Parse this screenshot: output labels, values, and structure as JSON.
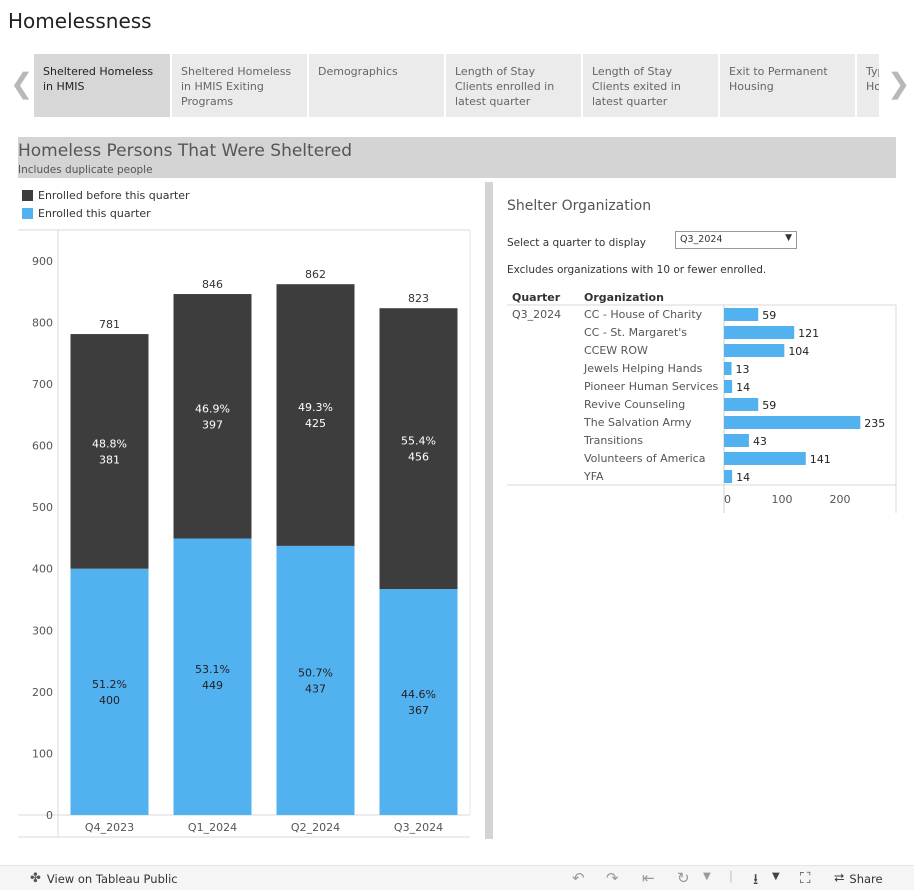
{
  "app": {
    "title": "Homelessness"
  },
  "tabs": [
    {
      "label": "Sheltered Homeless in HMIS",
      "active": true
    },
    {
      "label": "Sheltered Homeless in HMIS Exiting Programs",
      "active": false
    },
    {
      "label": "Demographics",
      "active": false
    },
    {
      "label": "Length of Stay Clients enrolled in latest quarter",
      "active": false
    },
    {
      "label": "Length of Stay Clients exited in latest quarter",
      "active": false
    },
    {
      "label": "Exit to Permanent Housing",
      "active": false
    },
    {
      "label": "Type of Housing",
      "active": false
    }
  ],
  "section": {
    "title": "Homeless Persons That Were Sheltered",
    "subtitle": "Includes duplicate people"
  },
  "colors": {
    "before": "#3d3d3d",
    "this_quarter": "#52b2f0"
  },
  "chart_data": [
    {
      "type": "bar",
      "stacked": true,
      "categories": [
        "Q4_2023",
        "Q1_2024",
        "Q2_2024",
        "Q3_2024"
      ],
      "series": [
        {
          "name": "Enrolled this quarter",
          "values": [
            400,
            449,
            437,
            367
          ],
          "percent_labels": [
            "51.2%",
            "53.1%",
            "50.7%",
            "44.6%"
          ]
        },
        {
          "name": "Enrolled before this quarter",
          "values": [
            381,
            397,
            425,
            456
          ],
          "percent_labels": [
            "48.8%",
            "46.9%",
            "49.3%",
            "55.4%"
          ]
        }
      ],
      "totals": [
        781,
        846,
        862,
        823
      ],
      "ylim": [
        0,
        950
      ],
      "yticks": [
        0,
        100,
        200,
        300,
        400,
        500,
        600,
        700,
        800,
        900
      ],
      "legend": "top-left",
      "grid": false
    },
    {
      "type": "bar",
      "orientation": "horizontal",
      "columns": [
        "Quarter",
        "Organization"
      ],
      "quarter": "Q3_2024",
      "categories": [
        "CC - House of Charity",
        "CC - St. Margaret's",
        "CCEW ROW",
        "Jewels Helping Hands",
        "Pioneer Human Services",
        "Revive Counseling",
        "The Salvation Army",
        "Transitions",
        "Volunteers of America",
        "YFA"
      ],
      "values": [
        59,
        121,
        104,
        13,
        14,
        59,
        235,
        43,
        141,
        14
      ],
      "xticks": [
        0,
        100,
        200
      ],
      "xlim": [
        0,
        300
      ]
    }
  ],
  "org_panel": {
    "title": "Shelter Organization",
    "filter_label": "Select a quarter to display",
    "filter_value": "Q3_2024",
    "note": "Excludes organizations with 10 or fewer enrolled."
  },
  "footer": {
    "view_label": "View on Tableau Public",
    "share_label": "Share"
  }
}
